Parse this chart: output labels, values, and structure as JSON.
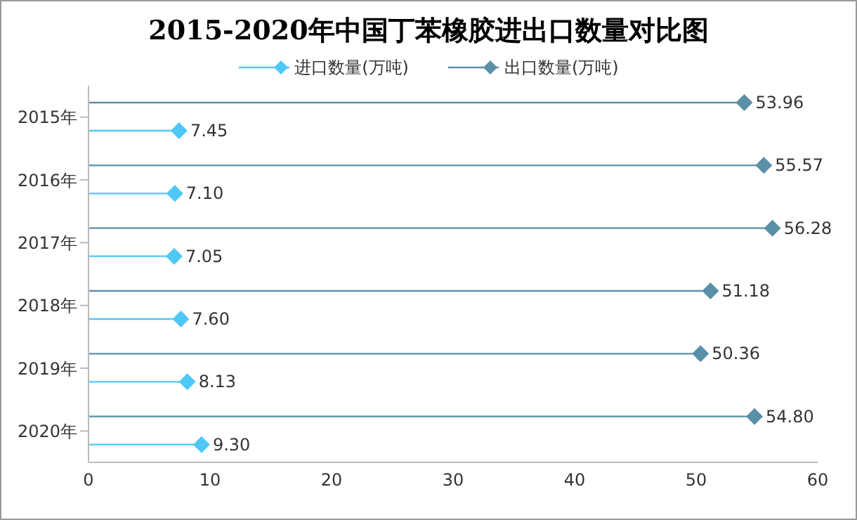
{
  "chart_data": {
    "type": "lollipop",
    "orientation": "horizontal",
    "title": "2015-2020年中国丁苯橡胶进出口数量对比图",
    "categories": [
      "2015年",
      "2016年",
      "2017年",
      "2018年",
      "2019年",
      "2020年"
    ],
    "series": [
      {
        "name": "进口数量(万吨)",
        "color": "#4fc8f5",
        "values": [
          7.45,
          7.1,
          7.05,
          7.6,
          8.13,
          9.3
        ],
        "value_labels": [
          "7.45",
          "7.10",
          "7.05",
          "7.60",
          "8.13",
          "9.30"
        ]
      },
      {
        "name": "出口数量(万吨)",
        "color": "#5a8fa8",
        "values": [
          53.96,
          55.57,
          56.28,
          51.18,
          50.36,
          54.8
        ],
        "value_labels": [
          "53.96",
          "55.57",
          "56.28",
          "51.18",
          "50.36",
          "54.80"
        ]
      }
    ],
    "xlim": [
      0,
      60
    ],
    "xticks": [
      0,
      10,
      20,
      30,
      40,
      50,
      60
    ],
    "legend": "top",
    "marker": "diamond"
  }
}
